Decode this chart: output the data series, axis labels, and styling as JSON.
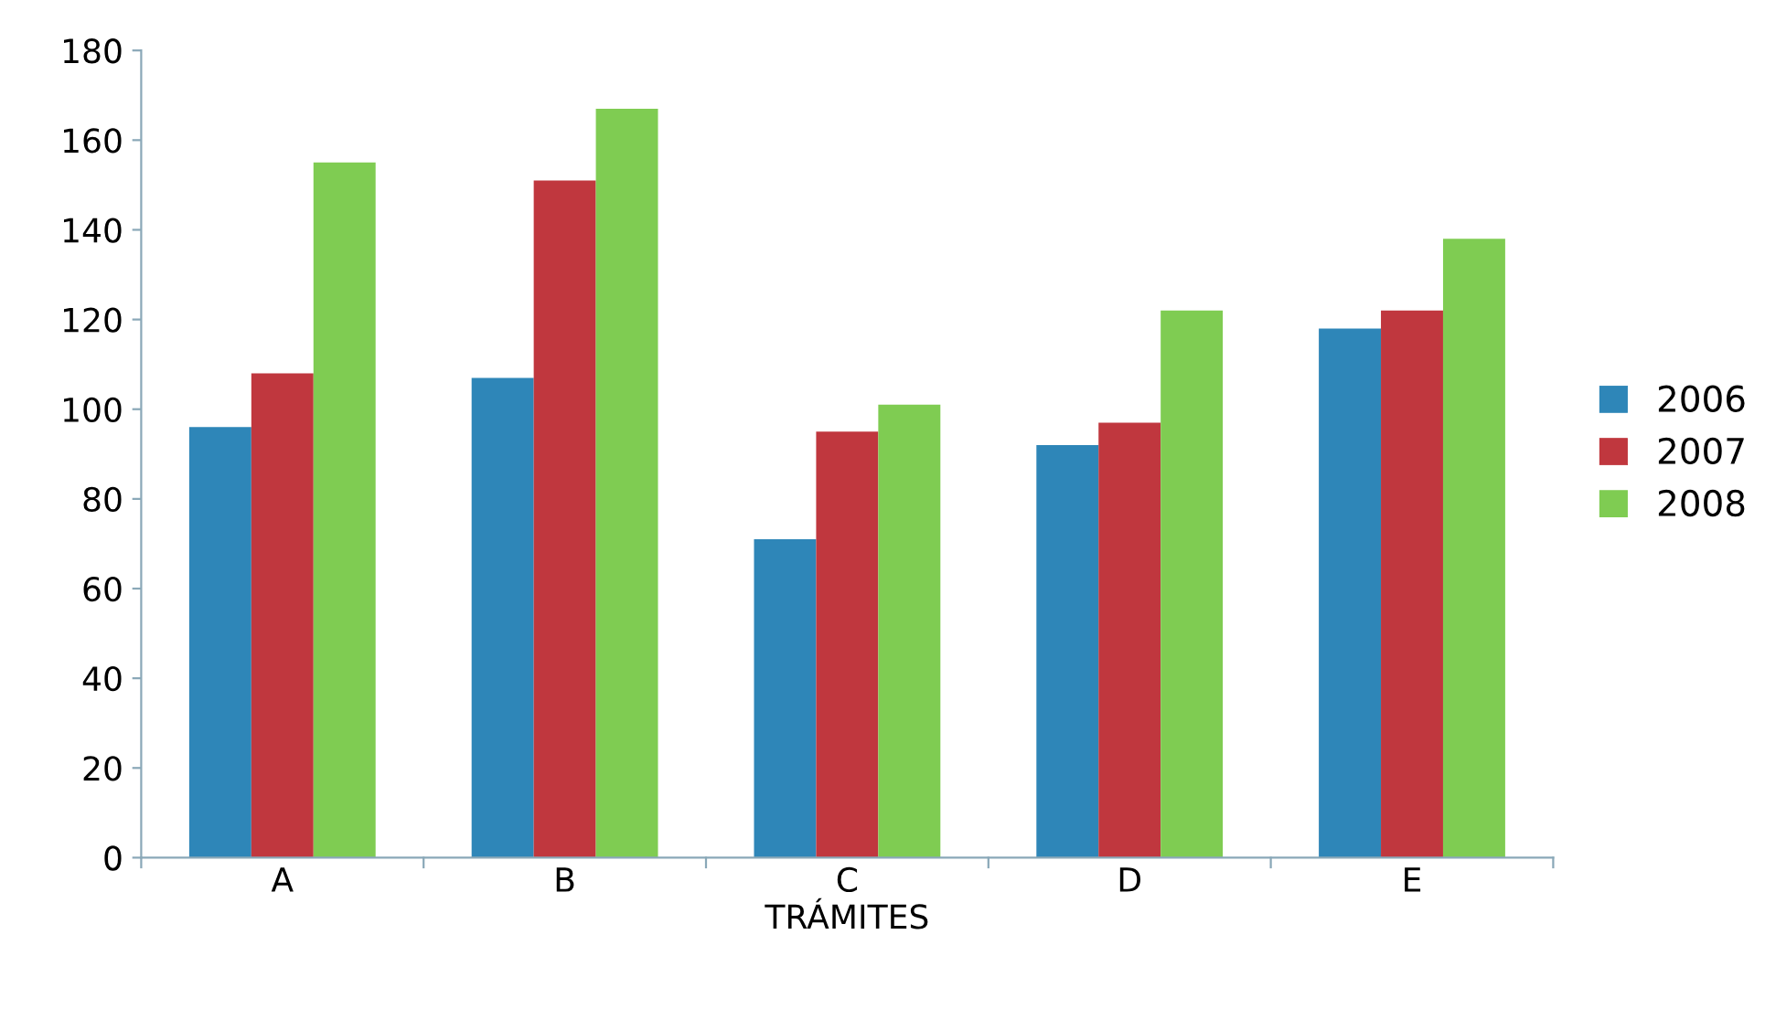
{
  "chart_data": {
    "type": "bar",
    "xlabel": "TRÁMITES",
    "categories": [
      "A",
      "B",
      "C",
      "D",
      "E"
    ],
    "series": [
      {
        "name": "2006",
        "color": "#2e86b8",
        "values": [
          96,
          107,
          71,
          92,
          118
        ]
      },
      {
        "name": "2007",
        "color": "#c0373e",
        "values": [
          108,
          151,
          95,
          97,
          122
        ]
      },
      {
        "name": "2008",
        "color": "#7fcc52",
        "values": [
          155,
          167,
          101,
          122,
          138
        ]
      }
    ],
    "ylim": [
      0,
      180
    ],
    "yticks": [
      0,
      20,
      40,
      60,
      80,
      100,
      120,
      140,
      160,
      180
    ],
    "grid": false,
    "legend": "right"
  }
}
